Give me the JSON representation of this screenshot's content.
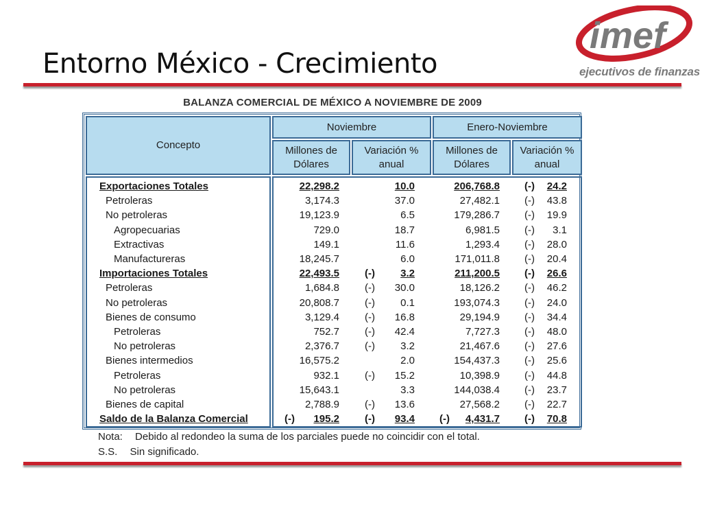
{
  "slide": {
    "title": "Entorno México - Crecimiento",
    "logo_text": "imef",
    "logo_tagline": "ejecutivos de finanzas"
  },
  "table": {
    "title": "BALANZA COMERCIAL DE MÉXICO A NOVIEMBRE DE 2009",
    "headers": {
      "concept": "Concepto",
      "group1": "Noviembre",
      "group2": "Enero-Noviembre",
      "millions": "Millones de Dólares",
      "variation": "Variación % anual"
    },
    "rows": [
      {
        "label": "Exportaciones Totales",
        "level": 0,
        "total": true,
        "nm": "22,298.2",
        "nv_neg": "",
        "nv": "10.0",
        "em": "206,768.8",
        "ev_neg": "(-)",
        "ev": "24.2"
      },
      {
        "label": "Petroleras",
        "level": 1,
        "total": false,
        "nm": "3,174.3",
        "nv_neg": "",
        "nv": "37.0",
        "em": "27,482.1",
        "ev_neg": "(-)",
        "ev": "43.8"
      },
      {
        "label": "No petroleras",
        "level": 1,
        "total": false,
        "nm": "19,123.9",
        "nv_neg": "",
        "nv": "6.5",
        "em": "179,286.7",
        "ev_neg": "(-)",
        "ev": "19.9"
      },
      {
        "label": "Agropecuarias",
        "level": 2,
        "total": false,
        "nm": "729.0",
        "nv_neg": "",
        "nv": "18.7",
        "em": "6,981.5",
        "ev_neg": "(-)",
        "ev": "3.1"
      },
      {
        "label": "Extractivas",
        "level": 2,
        "total": false,
        "nm": "149.1",
        "nv_neg": "",
        "nv": "11.6",
        "em": "1,293.4",
        "ev_neg": "(-)",
        "ev": "28.0"
      },
      {
        "label": "Manufactureras",
        "level": 2,
        "total": false,
        "nm": "18,245.7",
        "nv_neg": "",
        "nv": "6.0",
        "em": "171,011.8",
        "ev_neg": "(-)",
        "ev": "20.4"
      },
      {
        "label": "Importaciones Totales",
        "level": 0,
        "total": true,
        "nm": "22,493.5",
        "nv_neg": "(-)",
        "nv": "3.2",
        "em": "211,200.5",
        "ev_neg": "(-)",
        "ev": "26.6"
      },
      {
        "label": "Petroleras",
        "level": 1,
        "total": false,
        "nm": "1,684.8",
        "nv_neg": "(-)",
        "nv": "30.0",
        "em": "18,126.2",
        "ev_neg": "(-)",
        "ev": "46.2"
      },
      {
        "label": "No petroleras",
        "level": 1,
        "total": false,
        "nm": "20,808.7",
        "nv_neg": "(-)",
        "nv": "0.1",
        "em": "193,074.3",
        "ev_neg": "(-)",
        "ev": "24.0"
      },
      {
        "label": "Bienes de consumo",
        "level": 1,
        "total": false,
        "nm": "3,129.4",
        "nv_neg": "(-)",
        "nv": "16.8",
        "em": "29,194.9",
        "ev_neg": "(-)",
        "ev": "34.4"
      },
      {
        "label": "Petroleras",
        "level": 2,
        "total": false,
        "nm": "752.7",
        "nv_neg": "(-)",
        "nv": "42.4",
        "em": "7,727.3",
        "ev_neg": "(-)",
        "ev": "48.0"
      },
      {
        "label": "No petroleras",
        "level": 2,
        "total": false,
        "nm": "2,376.7",
        "nv_neg": "(-)",
        "nv": "3.2",
        "em": "21,467.6",
        "ev_neg": "(-)",
        "ev": "27.6"
      },
      {
        "label": "Bienes intermedios",
        "level": 1,
        "total": false,
        "nm": "16,575.2",
        "nv_neg": "",
        "nv": "2.0",
        "em": "154,437.3",
        "ev_neg": "(-)",
        "ev": "25.6"
      },
      {
        "label": "Petroleras",
        "level": 2,
        "total": false,
        "nm": "932.1",
        "nv_neg": "(-)",
        "nv": "15.2",
        "em": "10,398.9",
        "ev_neg": "(-)",
        "ev": "44.8"
      },
      {
        "label": "No petroleras",
        "level": 2,
        "total": false,
        "nm": "15,643.1",
        "nv_neg": "",
        "nv": "3.3",
        "em": "144,038.4",
        "ev_neg": "(-)",
        "ev": "23.7"
      },
      {
        "label": "Bienes de capital",
        "level": 1,
        "total": false,
        "nm": "2,788.9",
        "nv_neg": "(-)",
        "nv": "13.6",
        "em": "27,568.2",
        "ev_neg": "(-)",
        "ev": "22.7"
      },
      {
        "label": "Saldo de la Balanza Comercial",
        "level": 0,
        "total": true,
        "nm_neg": "(-)",
        "nm": "195.2",
        "nv_neg": "(-)",
        "nv": "93.4",
        "em_neg": "(-)",
        "em": "4,431.7",
        "ev_neg": "(-)",
        "ev": "70.8"
      }
    ]
  },
  "notes": {
    "nota_key": "Nota:",
    "nota_text": "Debido al redondeo la suma de los parciales puede no coincidir con el total.",
    "ss_key": "S.S.",
    "ss_text": "Sin significado."
  },
  "colors": {
    "header_fill": "#b7dcef",
    "border": "#3b6a96",
    "accent_red": "#c8202c"
  }
}
